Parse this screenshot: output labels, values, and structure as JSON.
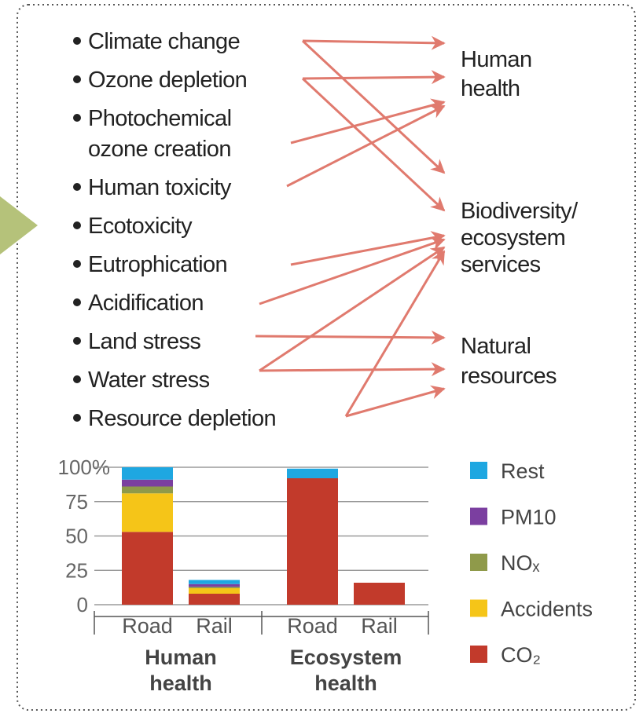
{
  "impacts": [
    [
      "Climate change"
    ],
    [
      "Ozone depletion"
    ],
    [
      "Photochemical",
      "ozone creation"
    ],
    [
      "Human toxicity"
    ],
    [
      "Ecotoxicity"
    ],
    [
      "Eutrophication"
    ],
    [
      "Acidification"
    ],
    [
      "Land stress"
    ],
    [
      "Water stress"
    ],
    [
      "Resource depletion"
    ]
  ],
  "endpoints": [
    [
      "Human",
      "health"
    ],
    [
      "Biodiversity/",
      "ecosystem",
      "services"
    ],
    [
      "Natural",
      "resources"
    ]
  ],
  "chart_data": {
    "type": "stacked_bar",
    "categories": [
      "Road",
      "Rail",
      "Road",
      "Rail"
    ],
    "groups": [
      [
        "Human",
        "health"
      ],
      [
        "Ecosystem",
        "health"
      ]
    ],
    "series": [
      {
        "name": "CO₂",
        "color": "#c23a2b",
        "values": [
          53,
          8,
          92,
          16
        ]
      },
      {
        "name": "Accidents",
        "color": "#f5c518",
        "values": [
          28,
          4,
          0,
          0
        ]
      },
      {
        "name": "NOₓ",
        "color": "#8f9a4a",
        "values": [
          5,
          1,
          0,
          0
        ]
      },
      {
        "name": "PM10",
        "color": "#7b3fa0",
        "values": [
          5,
          2,
          0,
          0
        ]
      },
      {
        "name": "Rest",
        "color": "#1ea7e1",
        "values": [
          9,
          3,
          7,
          0
        ]
      }
    ],
    "ylim": [
      0,
      100
    ],
    "yticks": [
      0,
      25,
      50,
      75,
      {
        "value": 100,
        "label": "100%"
      }
    ],
    "grid": true
  }
}
